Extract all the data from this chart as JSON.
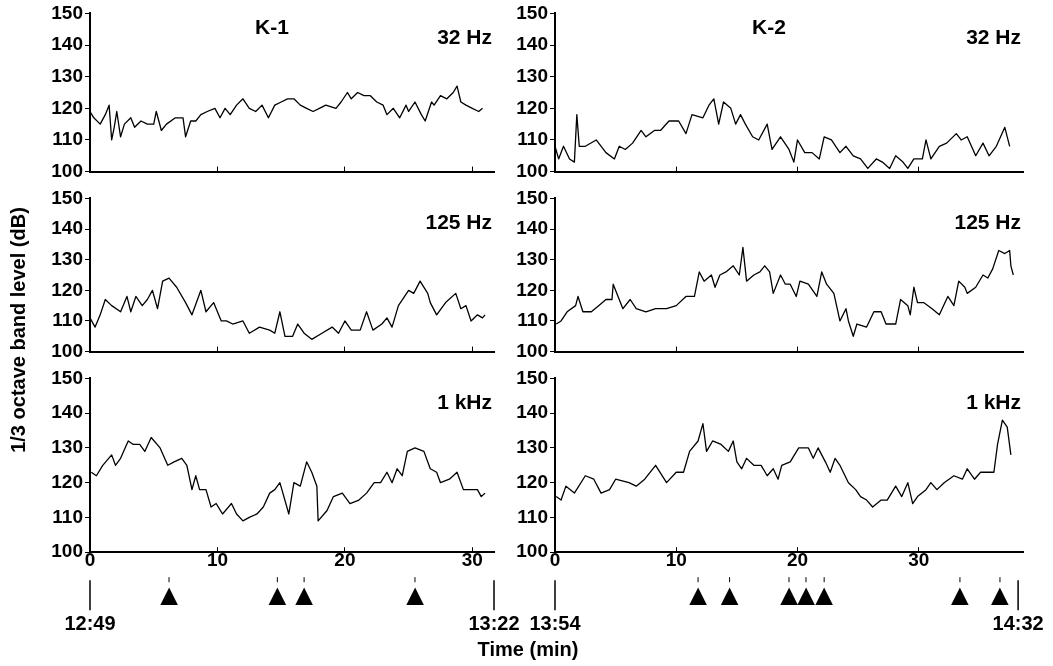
{
  "chart_data": [
    {
      "type": "line",
      "title": "K-1",
      "annotations": [
        "32 Hz"
      ],
      "xlim": [
        0,
        31.7
      ],
      "xticks": [
        0,
        10,
        20,
        30
      ],
      "ylim": [
        100,
        150
      ],
      "yticks": [
        100,
        110,
        120,
        130,
        140,
        150
      ],
      "tick_labels": "y",
      "marker": "none",
      "series": [
        {
          "color": "#000000",
          "x": [
            0,
            0.3,
            0.8,
            1.2,
            1.5,
            1.7,
            1.9,
            2.1,
            2.4,
            2.7,
            3.2,
            3.5,
            4,
            4.5,
            5,
            5.2,
            5.6,
            6,
            6.7,
            7.3,
            7.5,
            7.9,
            8.3,
            8.7,
            9.2,
            9.8,
            10.2,
            10.6,
            11,
            11.5,
            12,
            12.5,
            13,
            13.5,
            14,
            14.5,
            15,
            15.5,
            16,
            16.5,
            17,
            17.5,
            18,
            18.5,
            19.3,
            19.7,
            20.2,
            20.5,
            21,
            21.5,
            22,
            22.5,
            23,
            23.3,
            23.8,
            24.3,
            24.8,
            25,
            25.5,
            26,
            26.3,
            26.8,
            27,
            27.5,
            28,
            28.5,
            28.8,
            29.1,
            29.5,
            30,
            30.5,
            30.8
          ],
          "values": [
            119,
            117,
            115,
            118,
            121,
            110,
            114,
            119,
            111,
            115,
            117,
            114,
            116,
            115,
            115,
            119,
            113,
            115,
            117,
            117,
            111,
            116,
            116,
            118,
            119,
            120,
            117,
            120,
            118,
            121,
            123,
            120,
            119,
            121,
            117,
            121,
            122,
            123,
            123,
            121,
            120,
            119,
            120,
            121,
            120,
            122,
            125,
            123,
            125,
            124,
            124,
            122,
            121,
            118,
            120,
            117,
            121,
            119,
            122,
            118,
            116,
            122,
            121,
            124,
            123,
            125,
            127,
            122,
            121,
            120,
            119,
            120
          ]
        }
      ]
    },
    {
      "type": "line",
      "title": "K-2",
      "annotations": [
        "32 Hz"
      ],
      "xlim": [
        0,
        38.6
      ],
      "xticks": [
        0,
        10,
        20,
        30
      ],
      "ylim": [
        100,
        150
      ],
      "yticks": [
        100,
        110,
        120,
        130,
        140,
        150
      ],
      "tick_labels": "y",
      "marker": "none",
      "series": [
        {
          "color": "#000000",
          "x": [
            0,
            0.3,
            0.7,
            1.2,
            1.6,
            1.8,
            2,
            2.5,
            3.4,
            4.2,
            4.9,
            5.3,
            5.8,
            6.4,
            7.1,
            7.5,
            8.2,
            8.7,
            9.4,
            10.2,
            10.8,
            11.3,
            12.2,
            12.7,
            13.1,
            13.5,
            13.9,
            14.5,
            14.9,
            15.3,
            15.7,
            16.3,
            16.8,
            17.5,
            17.9,
            18.6,
            19.3,
            19.7,
            20,
            20.6,
            21.2,
            21.8,
            22.2,
            22.8,
            23.5,
            24,
            24.6,
            25.2,
            25.8,
            26.5,
            27,
            27.6,
            28.1,
            28.7,
            29.1,
            29.6,
            30.3,
            30.6,
            31,
            31.7,
            32.3,
            33.1,
            33.5,
            34,
            34.7,
            35.3,
            35.8,
            36.4,
            37.1,
            37.5
          ],
          "values": [
            108,
            104,
            108,
            104,
            103,
            118,
            108,
            108,
            110,
            106,
            104,
            108,
            107,
            109,
            113,
            111,
            113,
            113,
            116,
            116,
            112,
            118,
            117,
            121,
            123,
            115,
            122,
            120,
            115,
            118,
            115,
            111,
            110,
            115,
            107,
            111,
            107,
            103,
            110,
            106,
            106,
            104,
            111,
            110,
            106,
            108,
            105,
            104,
            101,
            104,
            103,
            101,
            105,
            103,
            101,
            104,
            104,
            110,
            104,
            108,
            109,
            112,
            110,
            111,
            105,
            109,
            105,
            108,
            114,
            108
          ]
        }
      ]
    },
    {
      "type": "line",
      "ylabel": "1/3 octave band level (dB)",
      "annotations": [
        "125 Hz"
      ],
      "xlim": [
        0,
        31.7
      ],
      "xticks": [
        0,
        10,
        20,
        30
      ],
      "ylim": [
        100,
        150
      ],
      "yticks": [
        100,
        110,
        120,
        130,
        140,
        150
      ],
      "tick_labels": "y",
      "marker": "none",
      "series": [
        {
          "color": "#000000",
          "x": [
            0,
            0.4,
            0.8,
            1.2,
            1.7,
            2.4,
            2.9,
            3.2,
            3.6,
            4.1,
            4.5,
            4.9,
            5.3,
            5.7,
            6.2,
            6.8,
            7.5,
            8,
            8.7,
            9.1,
            9.7,
            10.3,
            10.7,
            11.2,
            12,
            12.5,
            13.3,
            14.1,
            14.5,
            14.9,
            15.3,
            15.9,
            16.3,
            16.8,
            17.4,
            18.2,
            19,
            19.5,
            20,
            20.5,
            21.2,
            21.7,
            22.2,
            22.9,
            23.3,
            23.7,
            24.2,
            25,
            25.4,
            25.9,
            26.5,
            26.7,
            27.2,
            27.9,
            28.7,
            29.1,
            29.5,
            29.9,
            30.4,
            30.8,
            31
          ],
          "values": [
            111,
            108,
            112,
            117,
            115,
            113,
            118,
            113,
            118,
            115,
            117,
            120,
            114,
            123,
            124,
            121,
            116,
            112,
            120,
            113,
            116,
            110,
            110,
            109,
            110,
            106,
            108,
            107,
            106,
            113,
            105,
            105,
            109,
            106,
            104,
            106,
            108,
            106,
            110,
            107,
            107,
            113,
            107,
            109,
            111,
            108,
            115,
            120,
            119,
            123,
            119,
            116,
            112,
            116,
            119,
            114,
            115,
            110,
            112,
            111,
            112
          ]
        }
      ]
    },
    {
      "type": "line",
      "annotations": [
        "125 Hz"
      ],
      "xlim": [
        0,
        38.6
      ],
      "xticks": [
        0,
        10,
        20,
        30
      ],
      "ylim": [
        100,
        150
      ],
      "yticks": [
        100,
        110,
        120,
        130,
        140,
        150
      ],
      "tick_labels": "y",
      "marker": "none",
      "series": [
        {
          "color": "#000000",
          "x": [
            0.1,
            0.5,
            1,
            1.7,
            1.9,
            2.3,
            3,
            3.6,
            4.2,
            4.7,
            4.8,
            5.2,
            5.6,
            6.2,
            6.7,
            7.5,
            8.3,
            9.2,
            10,
            10.8,
            11.5,
            11.9,
            12.3,
            12.9,
            13.2,
            13.6,
            14.1,
            14.7,
            15.2,
            15.5,
            15.8,
            16.4,
            16.9,
            17.3,
            17.7,
            18,
            18.6,
            19,
            19.4,
            19.9,
            20.2,
            20.9,
            21.6,
            22,
            22.4,
            23,
            23.5,
            24,
            24.2,
            24.6,
            24.9,
            25.7,
            26.3,
            26.9,
            27.3,
            28.1,
            28.5,
            29.1,
            29.3,
            29.6,
            29.9,
            30.4,
            31.1,
            31.7,
            32.4,
            32.9,
            33.3,
            33.8,
            34,
            34.7,
            35.3,
            35.7,
            36.1,
            36.6,
            37.1,
            37.5,
            37.6,
            37.8
          ],
          "values": [
            109,
            110,
            113,
            115,
            118,
            113,
            113,
            115,
            117,
            117,
            122,
            118,
            114,
            117,
            114,
            113,
            114,
            114,
            115,
            118,
            118,
            126,
            123,
            125,
            121,
            125,
            126,
            128,
            125,
            134,
            123,
            125,
            126,
            128,
            126,
            119,
            125,
            122,
            122,
            118,
            123,
            122,
            118,
            126,
            122,
            119,
            110,
            114,
            110,
            105,
            109,
            108,
            113,
            113,
            109,
            109,
            117,
            115,
            112,
            121,
            116,
            116,
            114,
            112,
            118,
            115,
            123,
            121,
            119,
            121,
            125,
            124,
            127,
            133,
            132,
            133,
            128,
            125
          ]
        }
      ]
    },
    {
      "type": "line",
      "xlabel": "Time (min)",
      "annotations": [
        "1 kHz"
      ],
      "ref_lines": [
        {
          "axis": "x",
          "value": 6.2,
          "label": "▲"
        },
        {
          "axis": "x",
          "value": 14.7,
          "label": "▲"
        },
        {
          "axis": "x",
          "value": 16.8,
          "label": "▲"
        },
        {
          "axis": "x",
          "value": 25.5,
          "label": "▲"
        }
      ],
      "x2lim": [
        12.8167,
        13.3667
      ],
      "x2ticks": [
        {
          "value": 12.8167,
          "label": "12:49"
        },
        {
          "value": 13.3667,
          "label": "13:22"
        }
      ],
      "xlim": [
        0,
        31.7
      ],
      "xticks": [
        0,
        10,
        20,
        30
      ],
      "ylim": [
        100,
        150
      ],
      "yticks": [
        100,
        110,
        120,
        130,
        140,
        150
      ],
      "marker": "none",
      "series": [
        {
          "color": "#000000",
          "x": [
            0.1,
            0.5,
            1,
            1.7,
            2,
            2.4,
            3,
            3.4,
            3.9,
            4.3,
            4.8,
            5.5,
            6.1,
            6.6,
            7.2,
            7.6,
            8,
            8.3,
            8.6,
            9.1,
            9.5,
            9.9,
            10.4,
            11.1,
            11.5,
            12,
            12.5,
            13.1,
            13.6,
            14.1,
            14.5,
            14.9,
            15.6,
            16,
            16.5,
            17,
            17.4,
            17.8,
            17.9,
            18.6,
            19.1,
            19.8,
            20.4,
            21.1,
            21.7,
            22.3,
            22.8,
            23.3,
            23.7,
            24.1,
            24.5,
            24.9,
            25.5,
            26.2,
            26.7,
            27.2,
            27.5,
            28.2,
            28.8,
            29.3,
            29.9,
            30.4,
            30.7,
            31
          ],
          "values": [
            123,
            122,
            125,
            128,
            125,
            127,
            132,
            131,
            131,
            129,
            133,
            130,
            125,
            126,
            127,
            125,
            118,
            122,
            118,
            118,
            113,
            114,
            111,
            114,
            111,
            109,
            110,
            111,
            113,
            117,
            118,
            120,
            111,
            120,
            119,
            126,
            123,
            119,
            109,
            112,
            116,
            117,
            114,
            115,
            117,
            120,
            120,
            123,
            120,
            124,
            122,
            129,
            130,
            129,
            124,
            123,
            120,
            121,
            123,
            118,
            118,
            118,
            116,
            117
          ]
        }
      ]
    },
    {
      "type": "line",
      "annotations": [
        "1 kHz"
      ],
      "ref_lines": [
        {
          "axis": "x",
          "value": 11.8,
          "label": "▲"
        },
        {
          "axis": "x",
          "value": 14.4,
          "label": "▲"
        },
        {
          "axis": "x",
          "value": 19.3,
          "label": "▲"
        },
        {
          "axis": "x",
          "value": 20.7,
          "label": "▲"
        },
        {
          "axis": "x",
          "value": 22.2,
          "label": "▲"
        },
        {
          "axis": "x",
          "value": 33.4,
          "label": "▲"
        },
        {
          "axis": "x",
          "value": 36.7,
          "label": "▲"
        }
      ],
      "x2lim": [
        13.9,
        14.54
      ],
      "x2ticks": [
        {
          "value": 13.9,
          "label": "13:54"
        },
        {
          "value": 14.5333,
          "label": "14:32"
        }
      ],
      "xlim": [
        0,
        38.6
      ],
      "xticks": [
        0,
        10,
        20,
        30
      ],
      "ylim": [
        100,
        150
      ],
      "yticks": [
        100,
        110,
        120,
        130,
        140,
        150
      ],
      "marker": "none",
      "series": [
        {
          "color": "#000000",
          "x": [
            0.1,
            0.5,
            0.9,
            1.6,
            2.5,
            3.2,
            3.8,
            4.5,
            5,
            6.1,
            6.7,
            7.4,
            8.3,
            9.2,
            10,
            10.6,
            11.1,
            11.8,
            12.2,
            12.5,
            13,
            13.7,
            14.3,
            14.7,
            15,
            15.4,
            15.8,
            16.4,
            17,
            17.5,
            18,
            18.4,
            18.7,
            19.4,
            20.1,
            20.9,
            21.3,
            21.7,
            22.3,
            22.7,
            23.1,
            23.5,
            24.2,
            24.8,
            25.2,
            25.7,
            26.2,
            26.9,
            27.4,
            28.1,
            28.6,
            29.1,
            29.5,
            29.9,
            30.6,
            31,
            31.5,
            32.1,
            32.9,
            33.6,
            34,
            34.6,
            35.1,
            35.7,
            36.2,
            36.5,
            36.9,
            37.3,
            37.6
          ],
          "values": [
            116,
            115,
            119,
            117,
            122,
            121,
            117,
            118,
            121,
            120,
            119,
            121,
            125,
            120,
            123,
            123,
            129,
            132,
            137,
            129,
            132,
            131,
            129,
            132,
            126,
            124,
            127,
            125,
            125,
            122,
            124,
            121,
            125,
            126,
            130,
            130,
            127,
            130,
            126,
            123,
            127,
            125,
            120,
            118,
            116,
            115,
            113,
            115,
            115,
            119,
            116,
            120,
            114,
            116,
            118,
            120,
            118,
            120,
            122,
            121,
            124,
            121,
            123,
            123,
            123,
            131,
            138,
            136,
            128
          ]
        }
      ]
    }
  ]
}
